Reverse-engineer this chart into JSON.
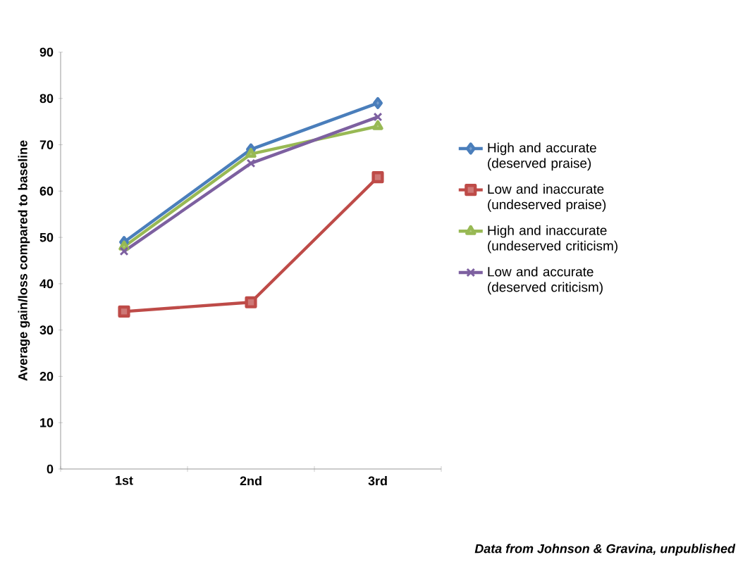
{
  "chart_data": {
    "type": "line",
    "ylabel": "Average gain/loss compared to baseline",
    "categories": [
      "1st",
      "2nd",
      "3rd"
    ],
    "series": [
      {
        "name": "High and accurate (deserved praise)",
        "color": "#4a7ebb",
        "marker": "diamond",
        "values": [
          49,
          69,
          79
        ]
      },
      {
        "name": "Low and inaccurate (undeserved praise)",
        "color": "#be4b48",
        "marker": "square",
        "values": [
          34,
          36,
          63
        ]
      },
      {
        "name": "High and inaccurate (undeserved criticism)",
        "color": "#98b954",
        "marker": "triangle",
        "values": [
          48,
          68,
          74
        ]
      },
      {
        "name": "Low and accurate (deserved criticism)",
        "color": "#7d60a0",
        "marker": "cross",
        "values": [
          47,
          66,
          76
        ]
      }
    ],
    "ylim": [
      0,
      90
    ],
    "yticks": [
      0,
      10,
      20,
      30,
      40,
      50,
      60,
      70,
      80,
      90
    ],
    "grid": false,
    "legend": "right",
    "annotations": [
      "Data from Johnson & Gravina, unpublished"
    ]
  }
}
